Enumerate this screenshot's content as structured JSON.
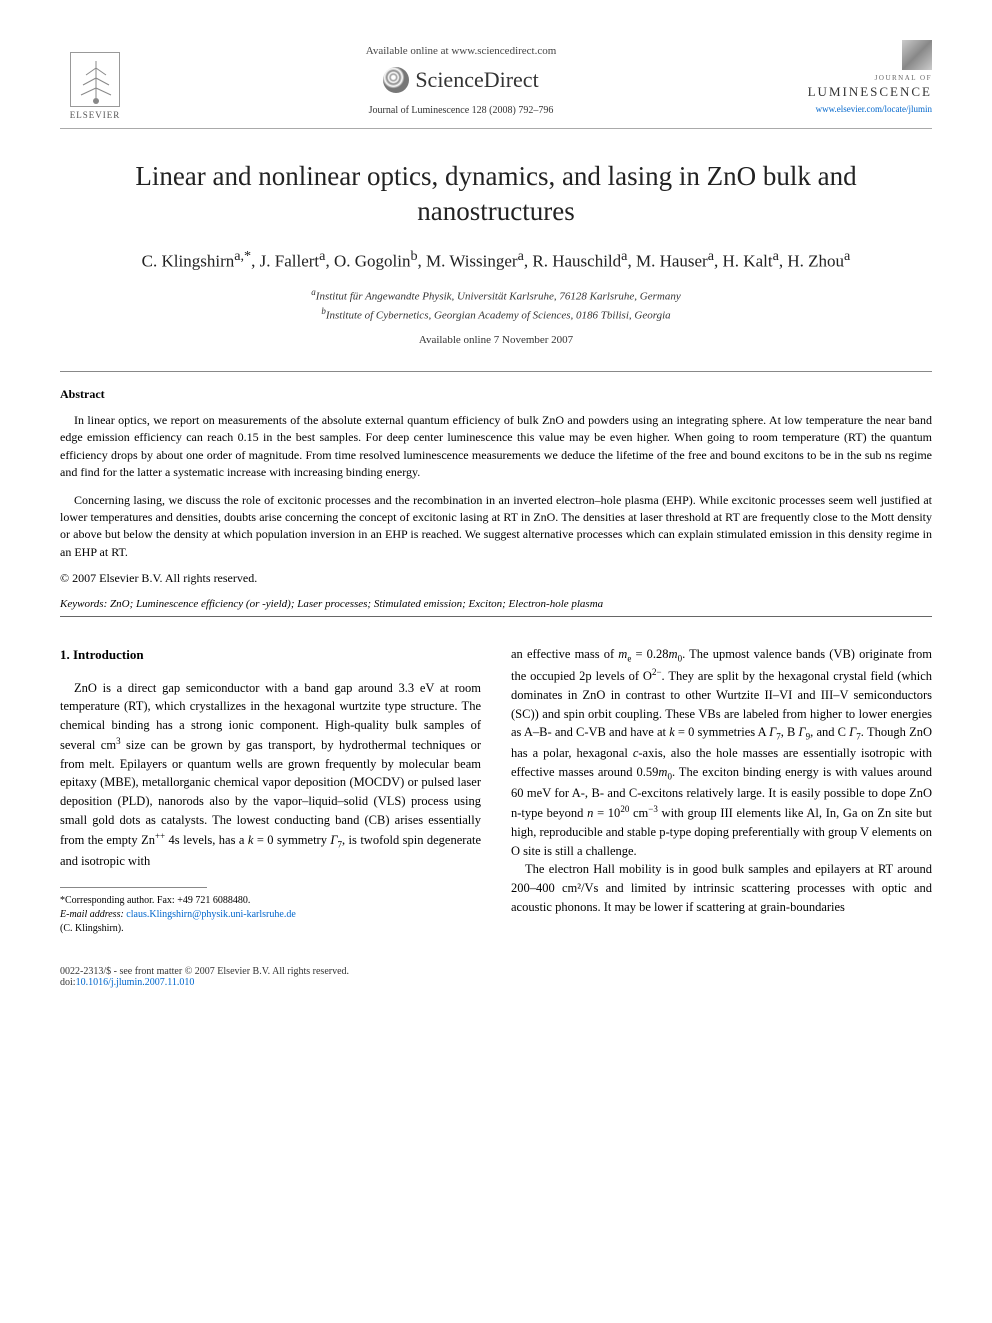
{
  "header": {
    "elsevier_label": "ELSEVIER",
    "available_online": "Available online at www.sciencedirect.com",
    "sciencedirect": "ScienceDirect",
    "journal_ref": "Journal of Luminescence 128 (2008) 792–796",
    "journal_of": "JOURNAL OF",
    "luminescence": "LUMINESCENCE",
    "journal_link": "www.elsevier.com/locate/jlumin"
  },
  "title": "Linear and nonlinear optics, dynamics, and lasing in ZnO bulk and nanostructures",
  "authors_html": "C. Klingshirn<sup>a,*</sup>, J. Fallert<sup>a</sup>, O. Gogolin<sup>b</sup>, M. Wissinger<sup>a</sup>, R. Hauschild<sup>a</sup>, M. Hauser<sup>a</sup>, H. Kalt<sup>a</sup>, H. Zhou<sup>a</sup>",
  "affiliations": {
    "a": "Institut für Angewandte Physik, Universität Karlsruhe, 76128 Karlsruhe, Germany",
    "b": "Institute of Cybernetics, Georgian Academy of Sciences, 0186 Tbilisi, Georgia"
  },
  "available_date": "Available online 7 November 2007",
  "abstract": {
    "heading": "Abstract",
    "p1": "In linear optics, we report on measurements of the absolute external quantum efficiency of bulk ZnO and powders using an integrating sphere. At low temperature the near band edge emission efficiency can reach 0.15 in the best samples. For deep center luminescence this value may be even higher. When going to room temperature (RT) the quantum efficiency drops by about one order of magnitude. From time resolved luminescence measurements we deduce the lifetime of the free and bound excitons to be in the sub ns regime and find for the latter a systematic increase with increasing binding energy.",
    "p2": "Concerning lasing, we discuss the role of excitonic processes and the recombination in an inverted electron–hole plasma (EHP). While excitonic processes seem well justified at lower temperatures and densities, doubts arise concerning the concept of excitonic lasing at RT in ZnO. The densities at laser threshold at RT are frequently close to the Mott density or above but below the density at which population inversion in an EHP is reached. We suggest alternative processes which can explain stimulated emission in this density regime in an EHP at RT.",
    "copyright": "© 2007 Elsevier B.V. All rights reserved."
  },
  "keywords": {
    "label": "Keywords:",
    "text": "ZnO; Luminescence efficiency (or -yield); Laser processes; Stimulated emission; Exciton; Electron-hole plasma"
  },
  "section1": {
    "heading": "1. Introduction",
    "col1": "ZnO is a direct gap semiconductor with a band gap around 3.3 eV at room temperature (RT), which crystallizes in the hexagonal wurtzite type structure. The chemical binding has a strong ionic component. High-quality bulk samples of several cm³ size can be grown by gas transport, by hydrothermal techniques or from melt. Epilayers or quantum wells are grown frequently by molecular beam epitaxy (MBE), metallorganic chemical vapor deposition (MOCDV) or pulsed laser deposition (PLD), nanorods also by the vapor–liquid–solid (VLS) process using small gold dots as catalysts. The lowest conducting band (CB) arises essentially from the empty Zn⁺⁺ 4s levels, has a k = 0 symmetry Γ₇, is twofold spin degenerate and isotropic with",
    "col2_p1": "an effective mass of mₑ = 0.28m₀. The upmost valence bands (VB) originate from the occupied 2p levels of O²⁻. They are split by the hexagonal crystal field (which dominates in ZnO in contrast to other Wurtzite II–VI and III–V semiconductors (SC)) and spin orbit coupling. These VBs are labeled from higher to lower energies as A–B- and C-VB and have at k = 0 symmetries A Γ₇, B Γ₉, and C Γ₇. Though ZnO has a polar, hexagonal c-axis, also the hole masses are essentially isotropic with effective masses around 0.59m₀. The exciton binding energy is with values around 60 meV for A-, B- and C-excitons relatively large. It is easily possible to dope ZnO n-type beyond n = 10²⁰ cm⁻³ with group III elements like Al, In, Ga on Zn site but high, reproducible and stable p-type doping preferentially with group V elements on O site is still a challenge.",
    "col2_p2": "The electron Hall mobility is in good bulk samples and epilayers at RT around 200–400 cm²/Vs and limited by intrinsic scattering processes with optic and acoustic phonons. It may be lower if scattering at grain-boundaries"
  },
  "footnote": {
    "corresponding": "*Corresponding author. Fax: +49 721 6088480.",
    "email_label": "E-mail address:",
    "email": "claus.Klingshirn@physik.uni-karlsruhe.de",
    "name": "(C. Klingshirn)."
  },
  "footer": {
    "left1": "0022-2313/$ - see front matter © 2007 Elsevier B.V. All rights reserved.",
    "left2_prefix": "doi:",
    "doi": "10.1016/j.jlumin.2007.11.010"
  }
}
